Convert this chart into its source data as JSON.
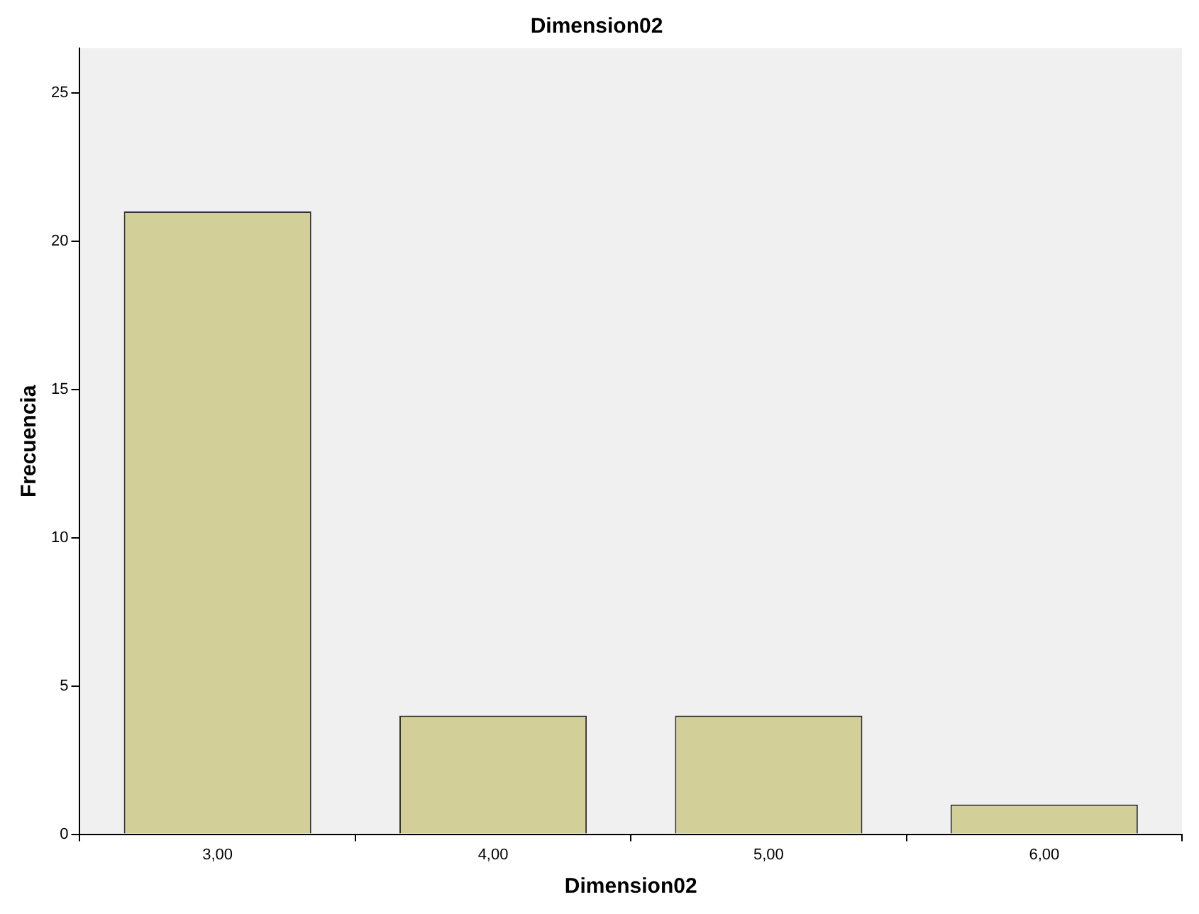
{
  "chart_data": {
    "type": "bar",
    "title": "Dimension02",
    "xlabel": "Dimension02",
    "ylabel": "Frecuencia",
    "categories": [
      "3,00",
      "4,00",
      "5,00",
      "6,00"
    ],
    "values": [
      21,
      4,
      4,
      1
    ],
    "color": "#d3cf98",
    "ylim": [
      0,
      26.5
    ],
    "yticks": [
      0,
      5,
      10,
      15,
      20,
      25
    ],
    "grid": false,
    "legend": false
  }
}
